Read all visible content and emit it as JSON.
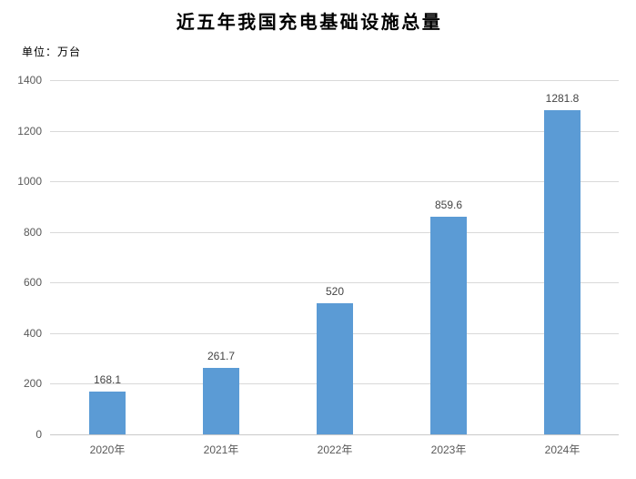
{
  "chart": {
    "title": "近五年我国充电基础设施总量",
    "unit_label": "单位：万台"
  },
  "chart_data": {
    "type": "bar",
    "title": "近五年我国充电基础设施总量",
    "subtitle_unit": "单位：万台",
    "categories": [
      "2020年",
      "2021年",
      "2022年",
      "2023年",
      "2024年"
    ],
    "values": [
      168.1,
      261.7,
      520,
      859.6,
      1281.8
    ],
    "value_labels": [
      "168.1",
      "261.7",
      "520",
      "859.6",
      "1281.8"
    ],
    "xlabel": "",
    "ylabel": "",
    "ylim": [
      0,
      1400
    ],
    "y_ticks": [
      0,
      200,
      400,
      600,
      800,
      1000,
      1200,
      1400
    ],
    "grid": "horizontal-on",
    "legend": "none",
    "colors": {
      "bar": "#5B9BD5",
      "gridline": "#D9D9D9",
      "axis_line": "#C9C9C9",
      "tick_label": "#595959",
      "value_label": "#444444",
      "title": "#000000",
      "background": "#FFFFFF"
    }
  }
}
